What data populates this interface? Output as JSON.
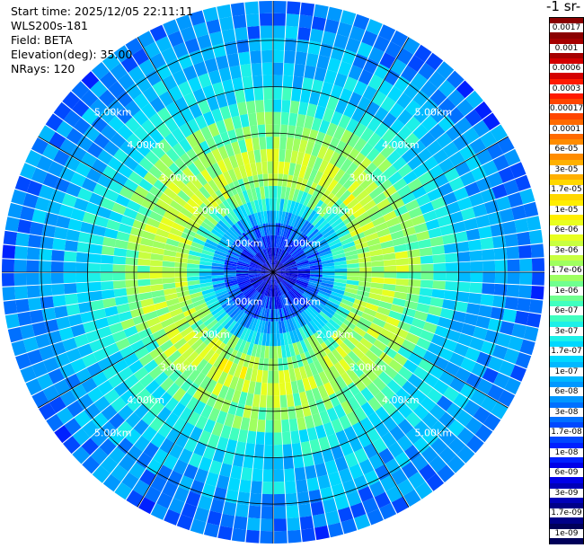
{
  "info": {
    "start_time": "Start time: 2025/12/05 22:11:11",
    "instrument": "WLS200s-181",
    "field": "Field: BETA",
    "elevation": "Elevation(deg): 35.00",
    "nrays": "NRays: 120"
  },
  "colorbar": {
    "title": "-1 sr-",
    "labels": [
      "0.0017",
      "0.001",
      "0.0006",
      "0.0003",
      "0.00017",
      "0.0001",
      "6e-05",
      "3e-05",
      "1.7e-05",
      "1e-05",
      "6e-06",
      "3e-06",
      "1.7e-06",
      "1e-06",
      "6e-07",
      "3e-07",
      "1.7e-07",
      "1e-07",
      "6e-08",
      "3e-08",
      "1.7e-08",
      "1e-08",
      "6e-09",
      "3e-09",
      "1.7e-09",
      "1e-09"
    ],
    "colors": [
      "#8b0000",
      "#a60000",
      "#d40000",
      "#ff1a00",
      "#ff4500",
      "#ff6a00",
      "#ff8c00",
      "#ffb000",
      "#ffd700",
      "#ffee00",
      "#e8ff1f",
      "#c8ff40",
      "#9fff60",
      "#70ff8f",
      "#40ffbf",
      "#1cf0e8",
      "#00d8ff",
      "#00b8ff",
      "#0098ff",
      "#0070ff",
      "#0048ff",
      "#0020ff",
      "#0000e8",
      "#0000b8",
      "#000088",
      "#00005a"
    ]
  },
  "chart_data": {
    "type": "heatmap",
    "projection": "polar (PPI scan)",
    "field": "BETA",
    "nrays": 120,
    "range_rings_km": [
      1,
      2,
      3,
      4,
      5
    ],
    "ring_labels": [
      "1.00km",
      "2.00km",
      "3.00km",
      "4.00km",
      "5.00km"
    ],
    "max_range_km": 5.85,
    "profile_by_range_km": [
      {
        "range_km": 0.2,
        "beta": 5e-09
      },
      {
        "range_km": 0.6,
        "beta": 1e-08
      },
      {
        "range_km": 1.0,
        "beta": 3e-08
      },
      {
        "range_km": 1.4,
        "beta": 1.7e-07
      },
      {
        "range_km": 1.8,
        "beta": 1e-06
      },
      {
        "range_km": 2.2,
        "beta": 3e-06
      },
      {
        "range_km": 2.8,
        "beta": 1.7e-06
      },
      {
        "range_km": 3.4,
        "beta": 6e-07
      },
      {
        "range_km": 4.0,
        "beta": 1.7e-07
      },
      {
        "range_km": 4.6,
        "beta": 1e-07
      },
      {
        "range_km": 5.2,
        "beta": 6e-08
      },
      {
        "range_km": 5.8,
        "beta": 3e-08
      }
    ],
    "colorbar_range": [
      1e-09,
      0.0017
    ]
  }
}
